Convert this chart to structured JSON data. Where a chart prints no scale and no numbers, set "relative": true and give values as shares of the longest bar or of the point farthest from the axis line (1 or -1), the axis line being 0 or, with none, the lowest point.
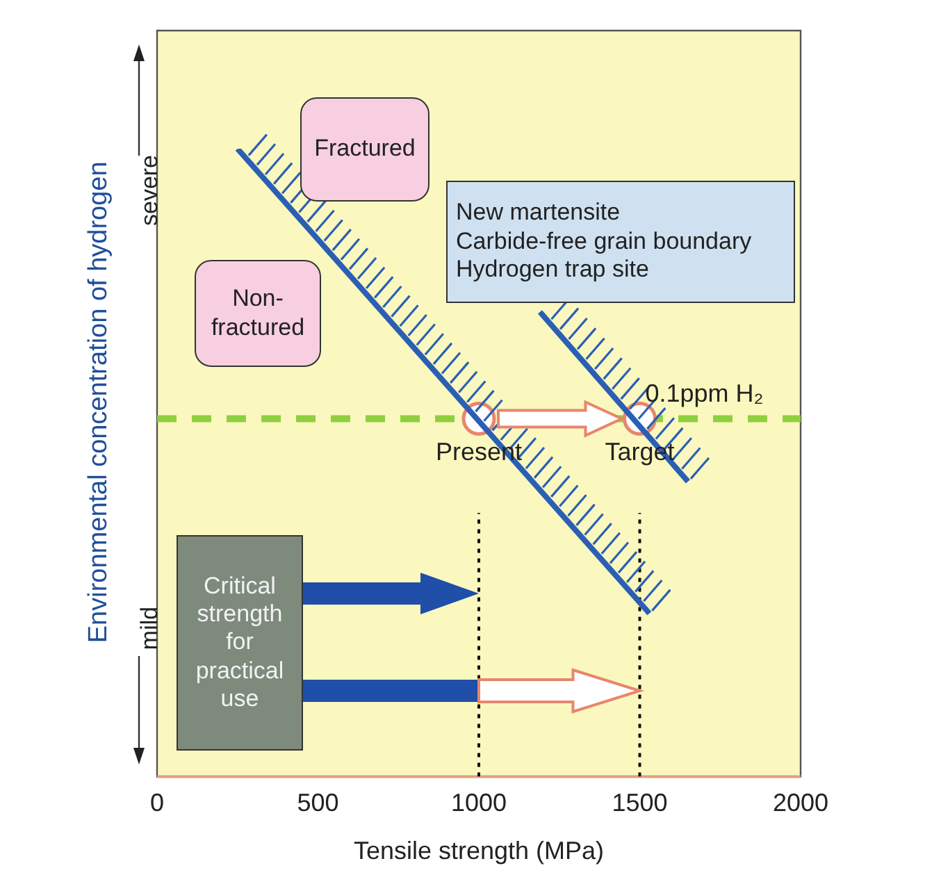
{
  "chart_data": {
    "type": "line",
    "xlabel": "Tensile strength (MPa)",
    "ylabel": "Environmental concentration of hydrogen",
    "xlim": [
      0,
      2000
    ],
    "xticks": [
      0,
      500,
      1000,
      1500,
      2000
    ],
    "relative": true,
    "series": [
      {
        "type": "line",
        "color": "#2b5fb4",
        "x": [
          250,
          1530
        ],
        "values": [
          1,
          0.26
        ]
      },
      {
        "type": "line",
        "color": "#2b5fb4",
        "x": [
          1190,
          1650
        ],
        "values": [
          0.74,
          0.47
        ]
      },
      {
        "type": "line",
        "color": "#111111",
        "line_style": "dotted",
        "x": [
          1000,
          1000
        ],
        "values": [
          0,
          0.42
        ]
      },
      {
        "type": "line",
        "color": "#111111",
        "line_style": "dotted",
        "x": [
          1500,
          1500
        ],
        "values": [
          0,
          0.42
        ]
      },
      {
        "type": "scatter",
        "color": "#e8866c",
        "marker": "circle",
        "x": [
          1000,
          1500
        ],
        "values": [
          0.57,
          0.57
        ]
      }
    ],
    "ref_lines": [
      {
        "axis": "y",
        "value": 0.57,
        "label": "0.1ppm H₂",
        "color": "#8fcf3f",
        "line_style": "dashed"
      }
    ],
    "annotations": [
      {
        "text": "Present",
        "x": 1000,
        "y": 0.57
      },
      {
        "text": "Target",
        "x": 1500,
        "y": 0.57
      },
      "Fractured",
      "Non-fractured",
      "New martensite\nCarbide-free grain boundary\nHydrogen trap site",
      "Critical strength for practical use",
      "severe",
      "mild"
    ]
  }
}
